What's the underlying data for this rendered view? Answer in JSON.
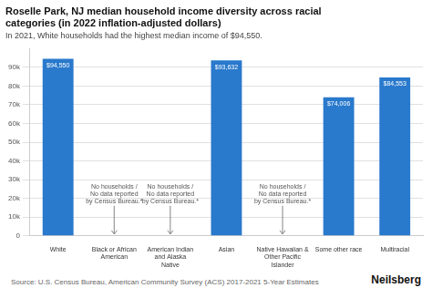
{
  "chart_data": {
    "type": "bar",
    "title": "Roselle Park, NJ median household income diversity across racial\ncategories (in 2022 inflation-adjusted dollars)",
    "subtitle": "In 2021, White households had the highest median income of $94,550.",
    "source": "Source: U.S. Census Bureau, American Community Survey (ACS) 2017-2021 5-Year Estimates",
    "brand": "Neilsberg",
    "categories": [
      "White",
      "Black or African\nAmerican",
      "American Indian\nand Alaska\nNative",
      "Asian",
      "Native Hawaiian &\nOther Pacific\nIslander",
      "Some other race",
      "Multiracial"
    ],
    "values": [
      94550,
      0,
      0,
      93632,
      0,
      74006,
      84553
    ],
    "value_labels": [
      "$94,550",
      null,
      null,
      "$93,632",
      null,
      "$74,006",
      "$84,553"
    ],
    "data_labels": true,
    "color": "#2979CC",
    "annotations": [
      {
        "text": "No households /\nNo data reported\nby Census Bureau.*",
        "x": "Black or African\nAmerican"
      },
      {
        "text": "No households /\nNo data reported\nby Census Bureau.*",
        "x": "American Indian\nand Alaska\nNative"
      },
      {
        "text": "No households /\nNo data reported\nby Census Bureau.*",
        "x": "Native Hawaiian &\nOther Pacific\nIslander"
      }
    ],
    "ylim": [
      0,
      100000
    ],
    "yticks": [
      0,
      {
        "value": 10000,
        "label": "10k"
      },
      {
        "value": 20000,
        "label": "20k"
      },
      {
        "value": 30000,
        "label": "30k"
      },
      {
        "value": 40000,
        "label": "40k"
      },
      {
        "value": 50000,
        "label": "50k"
      },
      {
        "value": 60000,
        "label": "60k"
      },
      {
        "value": 70000,
        "label": "70k"
      },
      {
        "value": 80000,
        "label": "80k"
      },
      {
        "value": 90000,
        "label": "90k"
      }
    ],
    "grid": true,
    "grid_color": "#e0e0e0"
  }
}
